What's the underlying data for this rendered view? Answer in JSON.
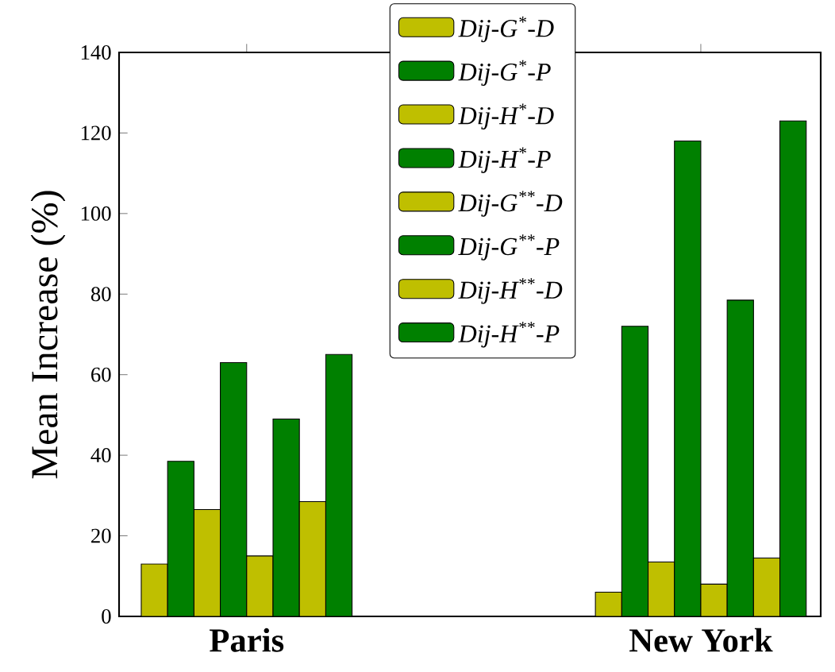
{
  "chart_data": {
    "type": "bar",
    "ylabel": "Mean Increase (%)",
    "categories": [
      "Paris",
      "New York"
    ],
    "series": [
      {
        "name": "Dij-G$^{*}$-D",
        "color": "#bfbf00",
        "values": [
          13,
          6
        ]
      },
      {
        "name": "Dij-G$^{*}$-P",
        "color": "#008000",
        "values": [
          38.5,
          72
        ]
      },
      {
        "name": "Dij-H$^{*}$-D",
        "color": "#bfbf00",
        "values": [
          26.5,
          13.5
        ]
      },
      {
        "name": "Dij-H$^{*}$-P",
        "color": "#008000",
        "values": [
          63,
          118
        ]
      },
      {
        "name": "Dij-G$^{**}$-D",
        "color": "#bfbf00",
        "values": [
          15,
          8
        ]
      },
      {
        "name": "Dij-G$^{**}$-P",
        "color": "#008000",
        "values": [
          49,
          78.5
        ]
      },
      {
        "name": "Dij-H$^{**}$-D",
        "color": "#bfbf00",
        "values": [
          28.5,
          14.5
        ]
      },
      {
        "name": "Dij-H$^{**}$-P",
        "color": "#008000",
        "values": [
          65,
          123
        ]
      }
    ],
    "ylim": [
      0,
      140
    ],
    "yticks": [
      0,
      20,
      40,
      60,
      80,
      100,
      120,
      140
    ],
    "grid": false,
    "legend": "top"
  }
}
